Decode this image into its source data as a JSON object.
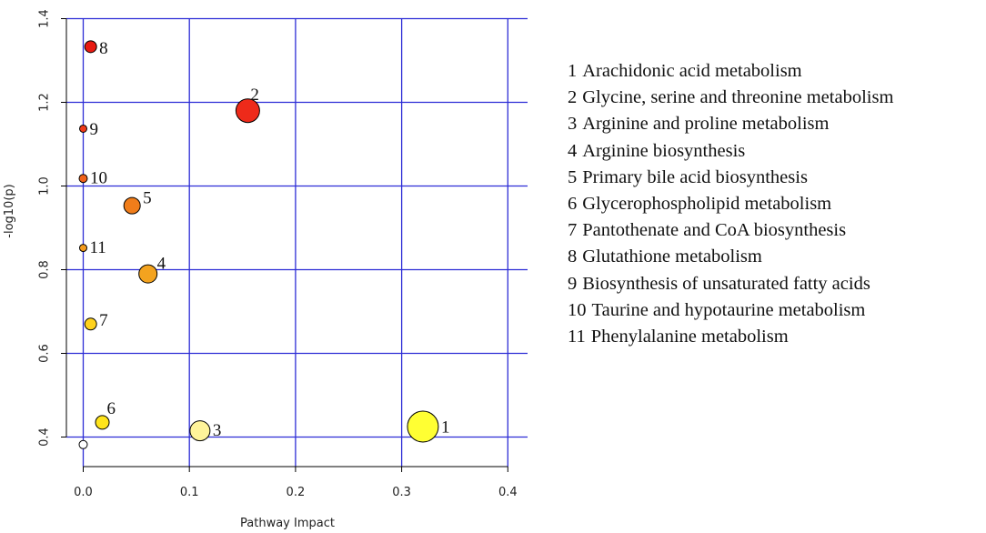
{
  "chart_data": {
    "type": "scatter",
    "xlabel": "Pathway Impact",
    "ylabel": "-log10(p)",
    "xlim": [
      -0.015,
      0.4
    ],
    "ylim": [
      0.34,
      1.4
    ],
    "xticks": [
      "0.0",
      "0.1",
      "0.2",
      "0.3",
      "0.4"
    ],
    "yticks": [
      "0.4",
      "0.6",
      "0.8",
      "1.0",
      "1.2",
      "1.4"
    ],
    "grid": true,
    "grid_color": "#2d2dd6",
    "points": [
      {
        "label": "1",
        "x": 0.32,
        "y": 0.425,
        "color": "#ffff33"
      },
      {
        "label": "2",
        "x": 0.155,
        "y": 1.18,
        "color": "#ee2a1a"
      },
      {
        "label": "3",
        "x": 0.11,
        "y": 0.415,
        "color": "#fff49a"
      },
      {
        "label": "4",
        "x": 0.061,
        "y": 0.79,
        "color": "#f3a31f"
      },
      {
        "label": "5",
        "x": 0.046,
        "y": 0.953,
        "color": "#f07d1a"
      },
      {
        "label": "6",
        "x": 0.018,
        "y": 0.435,
        "color": "#ffe41c"
      },
      {
        "label": "7",
        "x": 0.007,
        "y": 0.67,
        "color": "#ffd21c"
      },
      {
        "label": "8",
        "x": 0.007,
        "y": 1.333,
        "color": "#e81a12"
      },
      {
        "label": "9",
        "x": 0.0,
        "y": 1.137,
        "color": "#ee3a1a"
      },
      {
        "label": "10",
        "x": 0.0,
        "y": 1.018,
        "color": "#f0621c"
      },
      {
        "label": "11",
        "x": 0.0,
        "y": 0.852,
        "color": "#f39a1f"
      },
      {
        "label": "",
        "x": 0.0,
        "y": 0.382,
        "color": "#ffffff"
      }
    ]
  },
  "legend": [
    {
      "num": "1",
      "name": "Arachidonic acid metabolism"
    },
    {
      "num": "2",
      "name": "Glycine, serine and threonine metabolism"
    },
    {
      "num": "3",
      "name": "Arginine and proline metabolism"
    },
    {
      "num": "4",
      "name": "Arginine biosynthesis"
    },
    {
      "num": "5",
      "name": "Primary bile acid biosynthesis"
    },
    {
      "num": "6",
      "name": "Glycerophospholipid metabolism"
    },
    {
      "num": "7",
      "name": "Pantothenate and CoA biosynthesis"
    },
    {
      "num": "8",
      "name": "Glutathione metabolism"
    },
    {
      "num": "9",
      "name": "Biosynthesis of unsaturated fatty acids"
    },
    {
      "num": "10",
      "name": "Taurine and hypotaurine metabolism"
    },
    {
      "num": "11",
      "name": "Phenylalanine metabolism"
    }
  ]
}
